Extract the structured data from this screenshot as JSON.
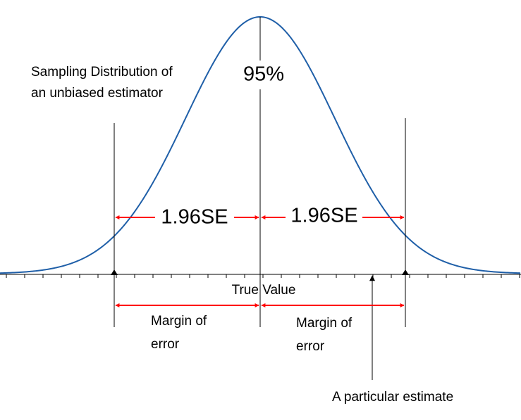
{
  "labels": {
    "distribution": [
      "Sampling Distribution of",
      "an unbiased estimator"
    ],
    "confidence": "95%",
    "se_left": "1.96SE",
    "se_right": "1.96SE",
    "center": "True Value",
    "margin_left": [
      "Margin of",
      "error"
    ],
    "margin_right": [
      "Margin of",
      "error"
    ],
    "estimate": "A particular estimate"
  }
}
